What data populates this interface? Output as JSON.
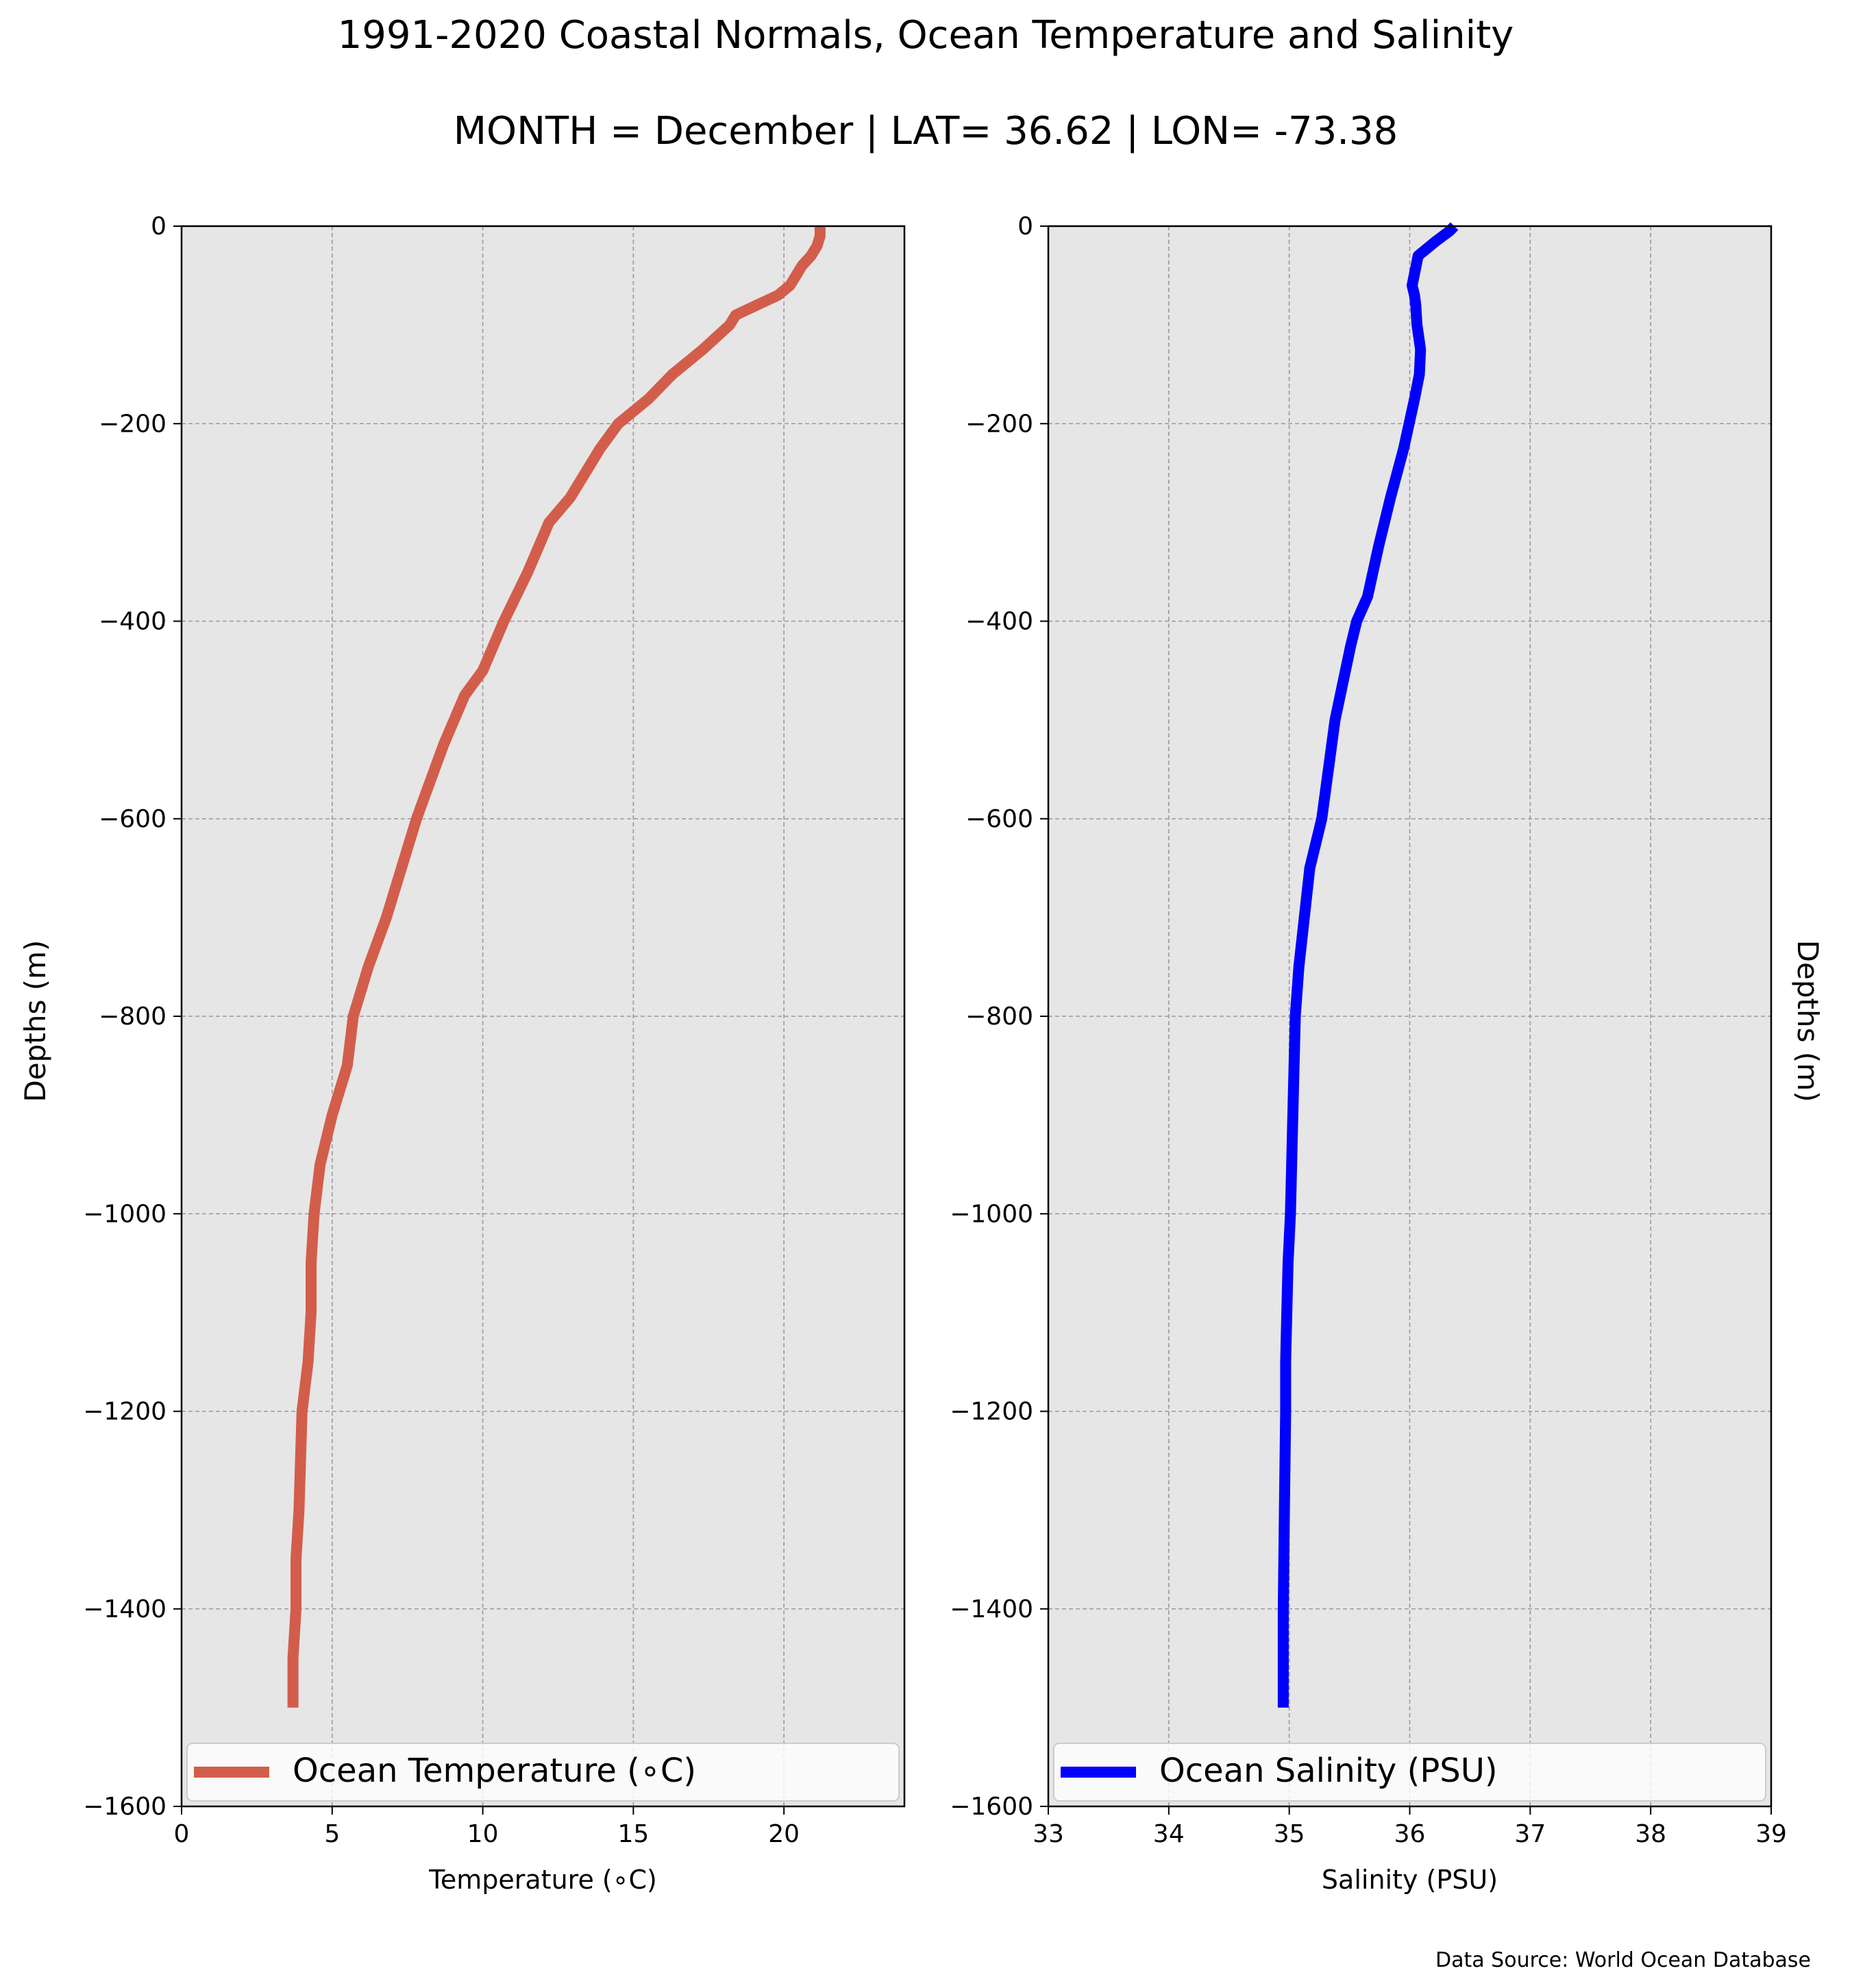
{
  "title": "1991-2020 Coastal Normals, Ocean Temperature and Salinity",
  "subtitle": "MONTH = December | LAT= 36.62 | LON= -73.38",
  "source_note": "Data Source: World Ocean Database",
  "colors": {
    "temperature": "#d35d4b",
    "salinity": "#0000ff",
    "panel_bg": "#e6e6e6",
    "grid": "#999999"
  },
  "chart_data": [
    {
      "type": "line",
      "xlabel": "Temperature (∘C)",
      "ylabel": "Depths (m)",
      "xlim": [
        0,
        24
      ],
      "ylim": [
        -1600,
        0
      ],
      "xticks": [
        0,
        5,
        10,
        15,
        20
      ],
      "xtick_labels": [
        "0",
        "5",
        "10",
        "15",
        "20"
      ],
      "yticks": [
        0,
        -200,
        -400,
        -600,
        -800,
        -1000,
        -1200,
        -1400,
        -1600
      ],
      "ytick_labels": [
        "0",
        "−200",
        "−400",
        "−600",
        "−800",
        "−1000",
        "−1200",
        "−1400",
        "−1600"
      ],
      "grid": true,
      "legend_position": "bottom",
      "series": [
        {
          "name": "Ocean Temperature (∘C)",
          "color": "#d35d4b",
          "x": [
            21.2,
            21.2,
            21.1,
            20.9,
            20.6,
            20.4,
            20.2,
            19.8,
            19.1,
            18.4,
            18.2,
            17.3,
            16.3,
            15.5,
            14.5,
            13.9,
            12.9,
            12.2,
            11.5,
            10.7,
            10.0,
            9.4,
            8.7,
            7.8,
            7.3,
            6.8,
            6.2,
            5.8,
            5.7,
            5.5,
            5.0,
            4.6,
            4.4,
            4.3,
            4.3,
            4.2,
            4.0,
            3.9,
            3.8,
            3.8,
            3.7,
            3.7
          ],
          "y": [
            0,
            -10,
            -20,
            -30,
            -40,
            -50,
            -60,
            -70,
            -80,
            -90,
            -100,
            -125,
            -150,
            -175,
            -200,
            -225,
            -275,
            -300,
            -350,
            -400,
            -450,
            -475,
            -525,
            -600,
            -650,
            -700,
            -750,
            -790,
            -800,
            -850,
            -900,
            -950,
            -1000,
            -1050,
            -1100,
            -1150,
            -1200,
            -1300,
            -1350,
            -1400,
            -1450,
            -1500
          ]
        }
      ]
    },
    {
      "type": "line",
      "xlabel": "Salinity (PSU)",
      "ylabel": "Depths (m)",
      "xlim": [
        33,
        39
      ],
      "ylim": [
        -1600,
        0
      ],
      "xticks": [
        33,
        34,
        35,
        36,
        37,
        38,
        39
      ],
      "xtick_labels": [
        "33",
        "34",
        "35",
        "36",
        "37",
        "38",
        "39"
      ],
      "yticks": [
        0,
        -200,
        -400,
        -600,
        -800,
        -1000,
        -1200,
        -1400,
        -1600
      ],
      "ytick_labels": [
        "0",
        "−200",
        "−400",
        "−600",
        "−800",
        "−1000",
        "−1200",
        "−1400",
        "−1600"
      ],
      "grid": true,
      "legend_position": "bottom",
      "series": [
        {
          "name": "Ocean Salinity (PSU)",
          "color": "#0000ff",
          "x": [
            36.37,
            36.33,
            36.22,
            36.07,
            36.02,
            36.04,
            36.05,
            36.06,
            36.09,
            36.08,
            36.04,
            35.95,
            35.84,
            35.74,
            35.65,
            35.56,
            35.51,
            35.38,
            35.27,
            35.17,
            35.08,
            35.05,
            35.03,
            35.01,
            34.99,
            34.98,
            34.97,
            34.97,
            34.96,
            34.95,
            34.95,
            34.95
          ],
          "y": [
            0,
            -5,
            -15,
            -30,
            -60,
            -70,
            -80,
            -100,
            -125,
            -150,
            -175,
            -225,
            -275,
            -325,
            -375,
            -400,
            -425,
            -500,
            -600,
            -650,
            -750,
            -800,
            -900,
            -1000,
            -1050,
            -1100,
            -1150,
            -1200,
            -1300,
            -1400,
            -1450,
            -1500
          ]
        }
      ]
    }
  ]
}
